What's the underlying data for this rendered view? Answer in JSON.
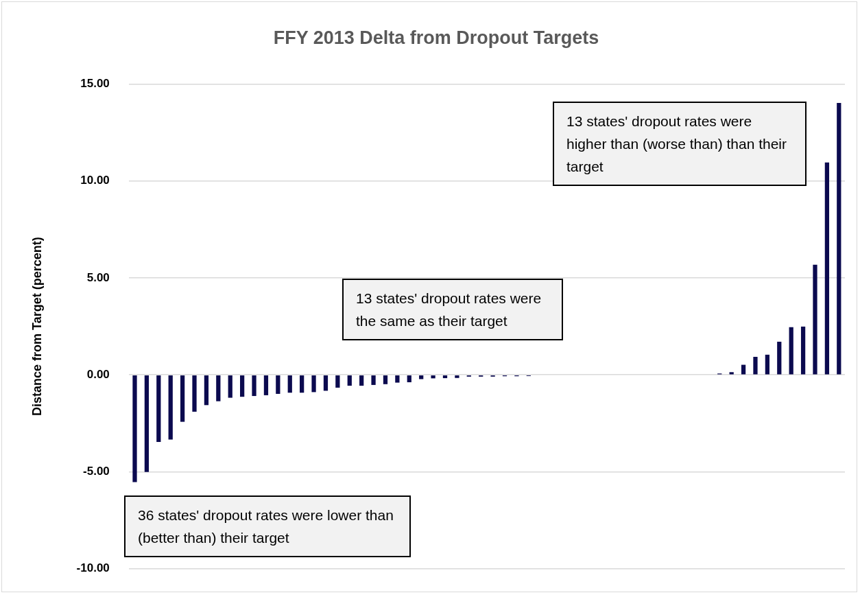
{
  "chart_data": {
    "type": "bar",
    "title": "FFY 2013 Delta from Dropout Targets",
    "ylabel": "Distance from Target (percent)",
    "categories": [
      null,
      null,
      null,
      null,
      null,
      null,
      null,
      null,
      null,
      null,
      null,
      null,
      null,
      null,
      null,
      null,
      null,
      null,
      null,
      null,
      null,
      null,
      null,
      null,
      null,
      null,
      null,
      null,
      null,
      null,
      null,
      null,
      null,
      null,
      null,
      null,
      null,
      null,
      null,
      null,
      null,
      null,
      null,
      null,
      null,
      null,
      null,
      null,
      null,
      null,
      null,
      null,
      null,
      null,
      null,
      null,
      null,
      null,
      null,
      null
    ],
    "values": [
      -5.53,
      -5.01,
      -3.46,
      -3.34,
      -2.42,
      -1.9,
      -1.56,
      -1.36,
      -1.18,
      -1.13,
      -1.09,
      -1.05,
      -0.98,
      -0.92,
      -0.92,
      -0.89,
      -0.82,
      -0.66,
      -0.56,
      -0.56,
      -0.52,
      -0.48,
      -0.4,
      -0.38,
      -0.22,
      -0.18,
      -0.17,
      -0.16,
      -0.09,
      -0.09,
      -0.09,
      -0.07,
      -0.07,
      -0.06,
      0,
      0,
      0,
      0,
      0,
      0,
      0,
      0,
      0,
      0,
      0,
      0,
      0,
      0,
      0,
      0.07,
      0.14,
      0.52,
      0.93,
      1.04,
      1.71,
      2.46,
      2.49,
      5.68,
      10.95,
      14.02
    ],
    "color": "#0b0a4f",
    "ylim": [
      -10,
      15
    ],
    "yticks": [
      {
        "value": -10,
        "label": "-10.00"
      },
      {
        "value": -5,
        "label": "-5.00"
      },
      {
        "value": 0,
        "label": "0.00"
      },
      {
        "value": 5,
        "label": "5.00"
      },
      {
        "value": 10,
        "label": "10.00"
      },
      {
        "value": 15,
        "label": "15.00"
      }
    ],
    "grid": "y",
    "annotations": [
      "13 states' dropout rates were higher than (worse than) than their target",
      "13 states' dropout rates were the same as their target",
      "36 states' dropout rates were lower than (better than) their target"
    ]
  }
}
